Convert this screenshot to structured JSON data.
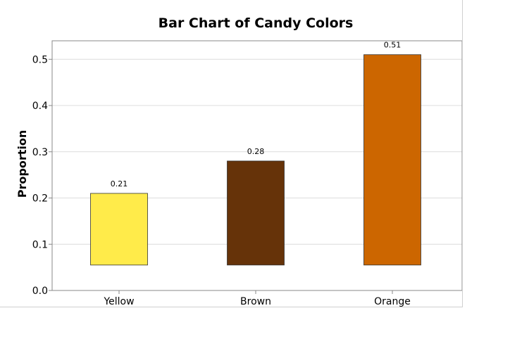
{
  "chart_data": {
    "type": "bar",
    "title": "Bar Chart of Candy Colors",
    "xlabel": "",
    "ylabel": "Proportion",
    "categories": [
      "Yellow",
      "Brown",
      "Orange"
    ],
    "values": [
      0.21,
      0.28,
      0.51
    ],
    "data_labels": [
      "0.21",
      "0.28",
      "0.51"
    ],
    "bar_colors": [
      "#ffeb4a",
      "#663309",
      "#cc6600"
    ],
    "bar_baseline": 0.055,
    "ylim": [
      0,
      0.54
    ],
    "yticks": [
      0.0,
      0.1,
      0.2,
      0.3,
      0.4,
      0.5
    ],
    "ytick_labels": [
      "0.0",
      "0.1",
      "0.2",
      "0.3",
      "0.4",
      "0.5"
    ],
    "grid": true,
    "legend": "none",
    "colors": {
      "grid": "#dcdcdc",
      "axis": "#888888",
      "bar_edge": "#333333"
    }
  }
}
